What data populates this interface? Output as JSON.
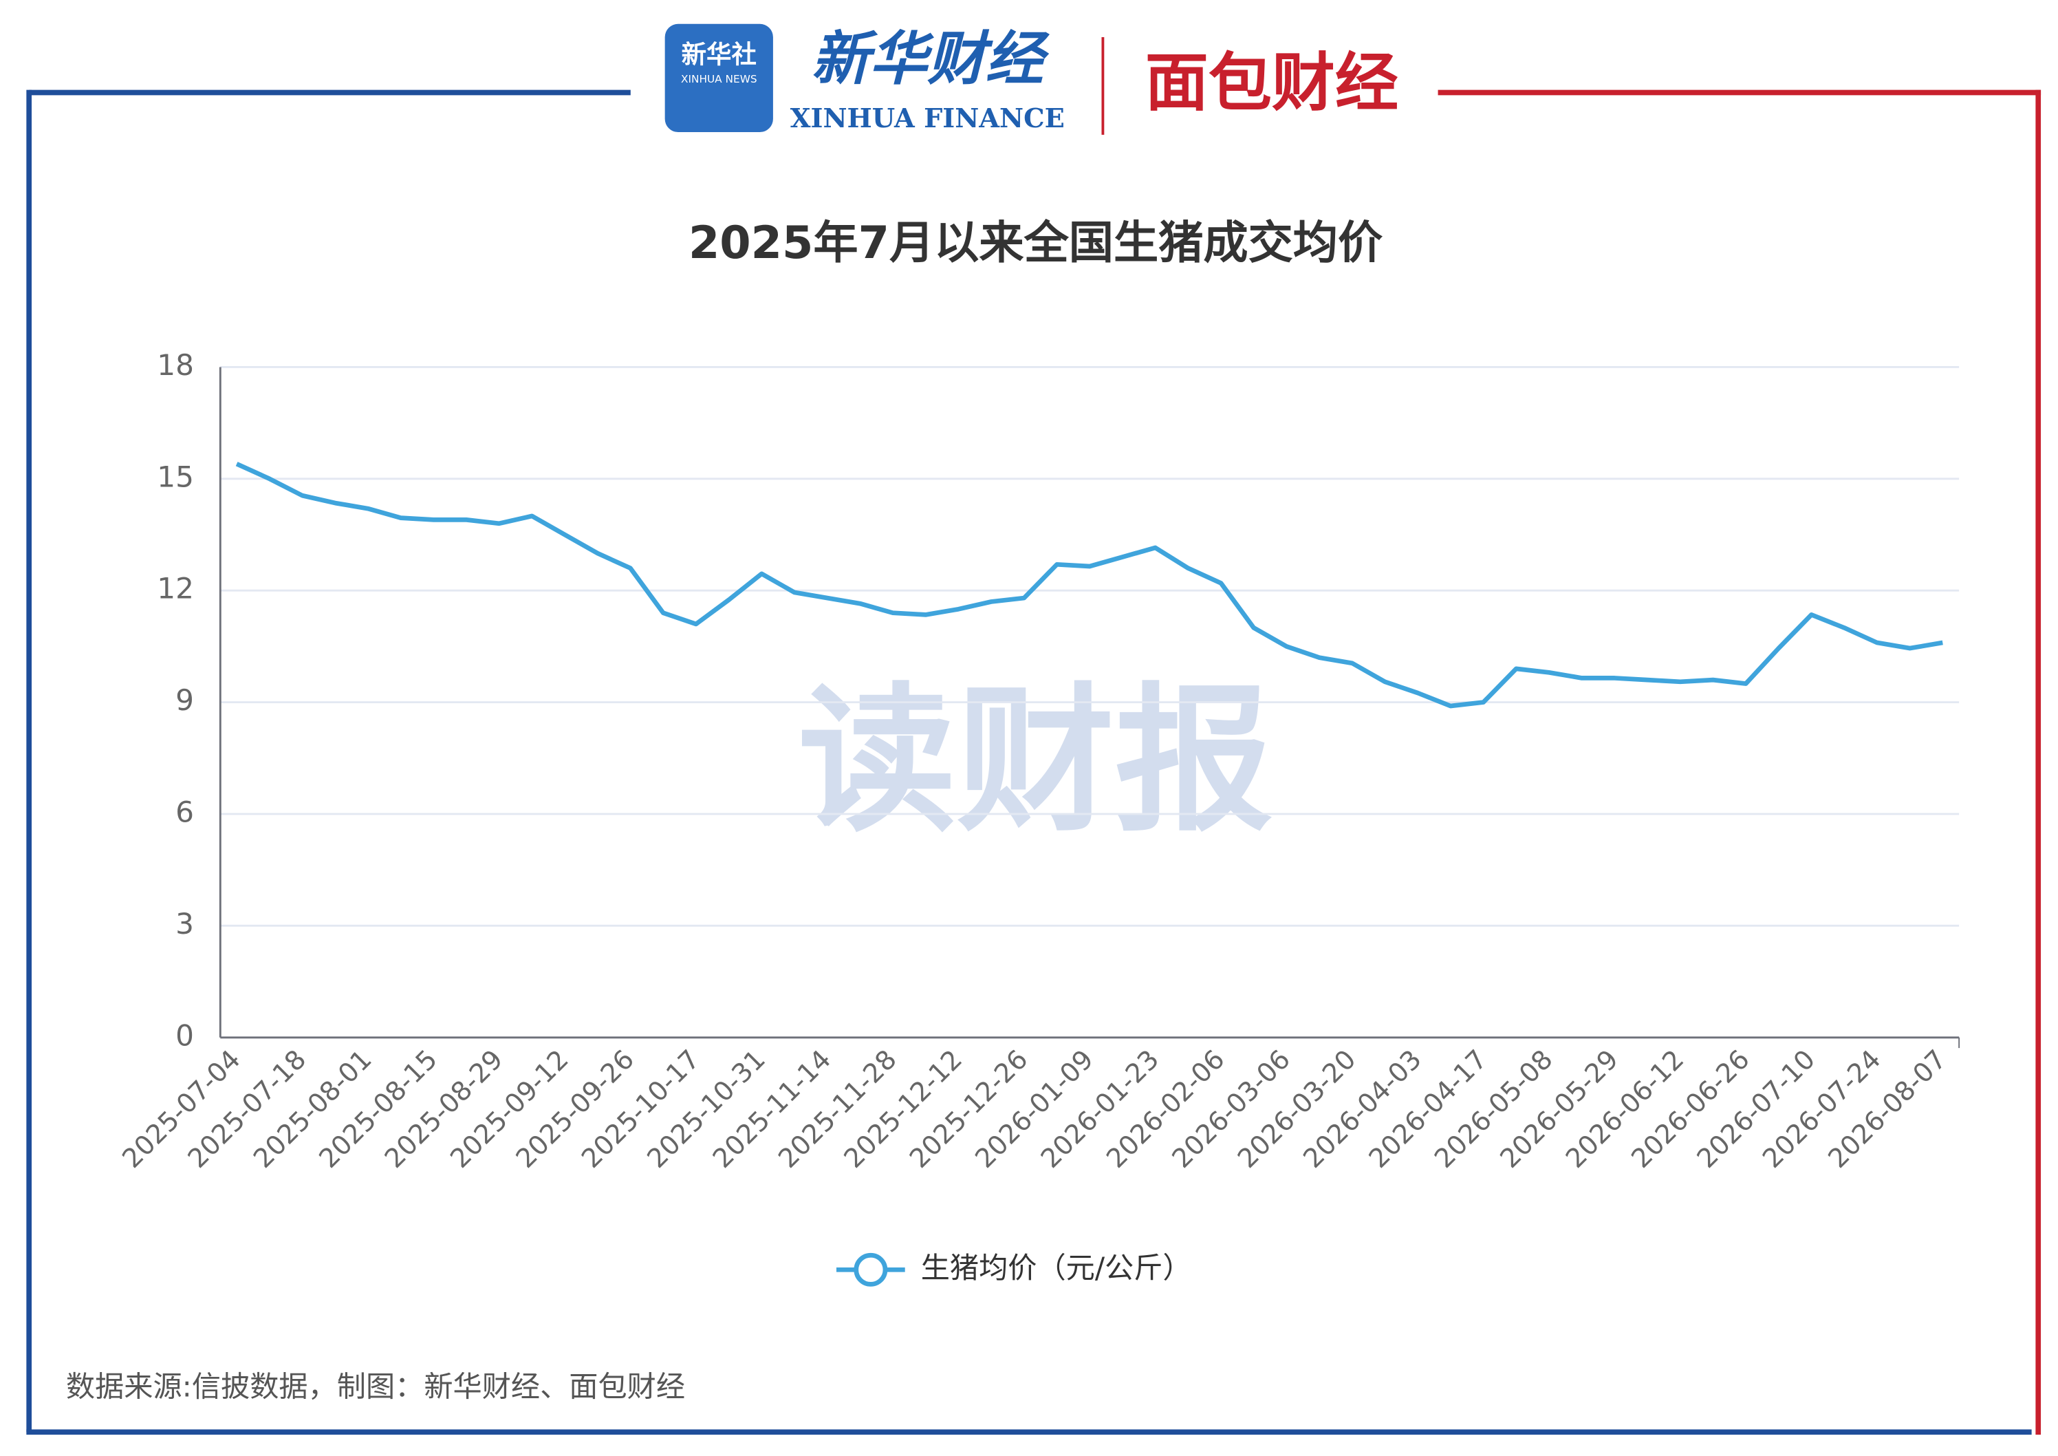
{
  "header": {
    "logo1_cn": "新华社",
    "logo1_en": "XINHUA NEWS",
    "logo2_cn": "新华财经",
    "logo2_en": "XINHUA FINANCE",
    "logo3": "面包财经"
  },
  "watermark": "读财报",
  "footer": "数据来源:信披数据，制图：新华财经、面包财经",
  "chart_data": {
    "type": "line",
    "title": "2025年7月以来全国生猪成交均价",
    "categories": [
      "2025-07-04",
      null,
      "2025-07-18",
      null,
      "2025-08-01",
      null,
      "2025-08-15",
      null,
      "2025-08-29",
      null,
      "2025-09-12",
      null,
      "2025-09-26",
      null,
      "2025-10-17",
      null,
      "2025-10-31",
      null,
      "2025-11-14",
      null,
      "2025-11-28",
      null,
      "2025-12-12",
      null,
      "2025-12-26",
      null,
      "2026-01-09",
      null,
      "2026-01-23",
      null,
      "2026-02-06",
      null,
      "2026-03-06",
      null,
      "2026-03-20",
      null,
      "2026-04-03",
      null,
      "2026-04-17",
      null,
      "2026-05-08",
      null,
      "2026-05-29",
      null,
      "2026-06-12",
      null,
      "2026-06-26",
      null,
      "2026-07-10",
      null,
      "2026-07-24",
      null,
      "2026-08-07"
    ],
    "series": [
      {
        "name": "生猪均价（元/公斤）",
        "color": "#3fa4dc",
        "values": [
          15.4,
          15.0,
          14.55,
          14.35,
          14.2,
          13.95,
          13.9,
          13.9,
          13.8,
          14.0,
          13.5,
          13.0,
          12.6,
          11.4,
          11.1,
          11.75,
          12.45,
          11.95,
          11.8,
          11.65,
          11.4,
          11.35,
          11.5,
          11.7,
          11.8,
          12.7,
          12.65,
          12.9,
          13.15,
          12.6,
          12.2,
          11.0,
          10.5,
          10.2,
          10.05,
          9.55,
          9.25,
          8.9,
          9.0,
          9.9,
          9.8,
          9.65,
          9.65,
          9.6,
          9.55,
          9.6,
          9.5,
          10.45,
          11.35,
          11.0,
          10.6,
          10.45,
          10.6
        ]
      }
    ],
    "ylim": [
      0,
      18
    ],
    "yticks": [
      0,
      3,
      6,
      9,
      12,
      15,
      18
    ],
    "grid": true,
    "legend": "bottom"
  }
}
